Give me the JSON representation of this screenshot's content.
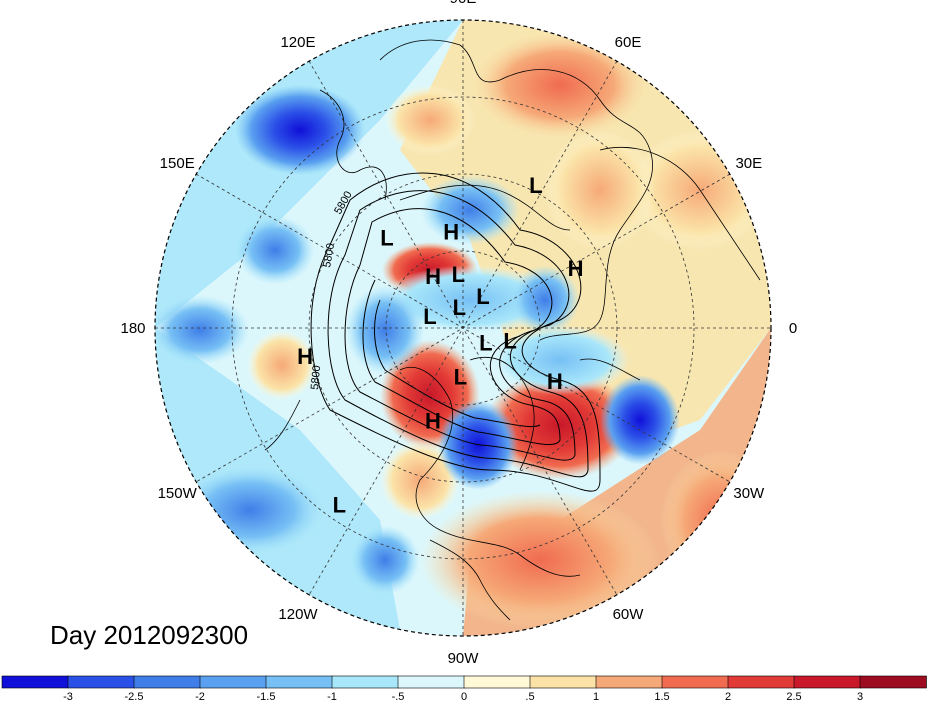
{
  "title": "Day 2012092300",
  "lon_labels": [
    {
      "text": "90E",
      "angle": 90
    },
    {
      "text": "60E",
      "angle": 60
    },
    {
      "text": "30E",
      "angle": 30
    },
    {
      "text": "0",
      "angle": 0
    },
    {
      "text": "30W",
      "angle": -30
    },
    {
      "text": "60W",
      "angle": -60
    },
    {
      "text": "90W",
      "angle": -90
    },
    {
      "text": "120W",
      "angle": -120
    },
    {
      "text": "150W",
      "angle": -150
    },
    {
      "text": "180",
      "angle": 180
    },
    {
      "text": "150E",
      "angle": 150
    },
    {
      "text": "120E",
      "angle": 120
    }
  ],
  "centers": [
    {
      "type": "L",
      "lon": 130,
      "lat": 48
    },
    {
      "type": "H",
      "lon": 97,
      "lat": 55
    },
    {
      "type": "L",
      "lon": 63,
      "lat": 35
    },
    {
      "type": "H",
      "lon": 28,
      "lat": 45
    },
    {
      "type": "L",
      "lon": 95,
      "lat": 70
    },
    {
      "type": "H",
      "lon": 120,
      "lat": 68
    },
    {
      "type": "L",
      "lon": 100,
      "lat": 82
    },
    {
      "type": "L",
      "lon": 58,
      "lat": 76
    },
    {
      "type": "L",
      "lon": 160,
      "lat": 77
    },
    {
      "type": "L",
      "lon": -32,
      "lat": 80
    },
    {
      "type": "L",
      "lon": -15,
      "lat": 72
    },
    {
      "type": "H",
      "lon": -30,
      "lat": 52
    },
    {
      "type": "L",
      "lon": -93,
      "lat": 72
    },
    {
      "type": "H",
      "lon": -108,
      "lat": 55
    },
    {
      "type": "H",
      "lon": -170,
      "lat": 35
    },
    {
      "type": "L",
      "lon": -125,
      "lat": 20
    }
  ],
  "contour_labels": [
    "5800",
    "5800",
    "5800"
  ],
  "colorbar": {
    "ticks": [
      "-3",
      "-2.5",
      "-2",
      "-1.5",
      "-1",
      "-.5",
      "0",
      ".5",
      "1",
      "1.5",
      "2",
      "2.5",
      "3"
    ],
    "colors": [
      "#1010d8",
      "#2b50e8",
      "#3f7ee8",
      "#5aa0f0",
      "#77c0f5",
      "#a8e6fa",
      "#dcf7fc",
      "#fff9d8",
      "#fbe3a8",
      "#f6a978",
      "#f06b50",
      "#e23a36",
      "#c8182a",
      "#9e0c22"
    ]
  }
}
